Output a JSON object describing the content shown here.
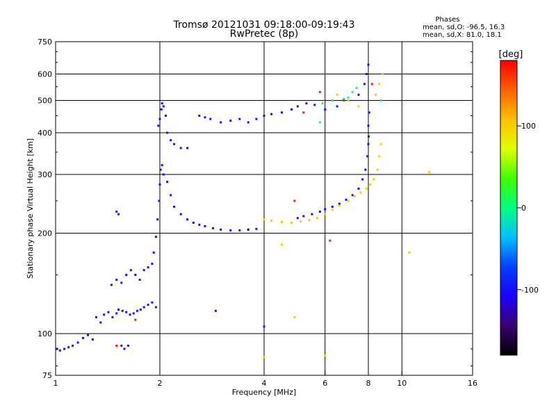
{
  "chart_data": {
    "type": "scatter",
    "title": "Tromsø 20121031 09:18:00-09:19:43",
    "subtitle": "RwPretec (8p)",
    "xlabel": "Frequency [MHz]",
    "ylabel": "Stationary phase Virtual Height [km]",
    "x_scale": "log2",
    "y_scale": "log",
    "xlim": [
      1,
      16
    ],
    "ylim": [
      75,
      750
    ],
    "x_ticks": [
      1,
      2,
      4,
      6,
      8,
      10,
      16
    ],
    "y_ticks": [
      75,
      100,
      200,
      300,
      400,
      500,
      600,
      750
    ],
    "grid": true,
    "stats": {
      "heading": "Phases",
      "line1": "mean, sd,O: -96.5, 16.3",
      "line2": "mean, sd,X:  81.0, 18.1"
    },
    "colorbar": {
      "label": "[deg]",
      "min": -180,
      "max": 180,
      "ticks": [
        100,
        0,
        -100
      ],
      "colors": [
        "#000000",
        "#3a0070",
        "#1a00ff",
        "#0040ff",
        "#00c0ff",
        "#00ff80",
        "#40ff00",
        "#e0ff00",
        "#ffc000",
        "#ff6000",
        "#ff0000"
      ]
    },
    "series": [
      {
        "phase": -100,
        "points": [
          [
            1.01,
            90
          ],
          [
            1.03,
            89
          ],
          [
            1.06,
            90
          ],
          [
            1.09,
            91
          ],
          [
            1.12,
            92
          ],
          [
            1.16,
            94
          ],
          [
            1.2,
            97
          ],
          [
            1.24,
            99
          ],
          [
            1.28,
            96
          ],
          [
            1.31,
            112
          ],
          [
            1.35,
            108
          ],
          [
            1.38,
            114
          ],
          [
            1.42,
            116
          ],
          [
            1.46,
            112
          ],
          [
            1.5,
            115
          ],
          [
            1.52,
            118
          ],
          [
            1.56,
            117
          ],
          [
            1.6,
            116
          ],
          [
            1.64,
            114
          ],
          [
            1.68,
            115
          ],
          [
            1.72,
            117
          ],
          [
            1.76,
            118
          ],
          [
            1.8,
            120
          ],
          [
            1.85,
            122
          ],
          [
            1.9,
            124
          ],
          [
            1.95,
            120
          ],
          [
            1.45,
            140
          ],
          [
            1.5,
            145
          ],
          [
            1.55,
            142
          ],
          [
            1.6,
            150
          ],
          [
            1.65,
            155
          ],
          [
            1.7,
            150
          ],
          [
            1.75,
            145
          ],
          [
            1.8,
            155
          ],
          [
            1.85,
            158
          ],
          [
            1.9,
            162
          ],
          [
            1.5,
            232
          ],
          [
            1.52,
            228
          ],
          [
            1.55,
            92
          ],
          [
            1.58,
            90
          ],
          [
            1.62,
            92
          ],
          [
            1.92,
            175
          ],
          [
            1.95,
            195
          ],
          [
            1.97,
            220
          ],
          [
            1.99,
            250
          ],
          [
            2.0,
            280
          ],
          [
            2.01,
            310
          ],
          [
            2.03,
            320
          ],
          [
            2.05,
            300
          ],
          [
            2.1,
            285
          ],
          [
            2.15,
            260
          ],
          [
            2.2,
            240
          ],
          [
            2.3,
            228
          ],
          [
            2.4,
            220
          ],
          [
            2.5,
            215
          ],
          [
            2.6,
            212
          ],
          [
            2.7,
            210
          ],
          [
            2.85,
            207
          ],
          [
            3.0,
            205
          ],
          [
            3.2,
            204
          ],
          [
            3.4,
            204
          ],
          [
            3.6,
            205
          ],
          [
            3.8,
            206
          ],
          [
            1.98,
            420
          ],
          [
            2.0,
            440
          ],
          [
            2.02,
            470
          ],
          [
            2.03,
            490
          ],
          [
            2.05,
            480
          ],
          [
            2.08,
            450
          ],
          [
            2.1,
            400
          ],
          [
            2.15,
            380
          ],
          [
            2.2,
            370
          ],
          [
            2.3,
            360
          ],
          [
            2.4,
            360
          ],
          [
            2.6,
            450
          ],
          [
            2.7,
            445
          ],
          [
            2.8,
            440
          ],
          [
            3.0,
            430
          ],
          [
            3.2,
            435
          ],
          [
            3.4,
            440
          ],
          [
            3.6,
            430
          ],
          [
            3.8,
            440
          ],
          [
            4.0,
            450
          ],
          [
            4.2,
            455
          ],
          [
            4.5,
            460
          ],
          [
            4.8,
            470
          ],
          [
            5.0,
            480
          ],
          [
            5.3,
            490
          ],
          [
            5.6,
            485
          ],
          [
            6.0,
            470
          ],
          [
            6.5,
            480
          ],
          [
            7.0,
            500
          ],
          [
            7.5,
            520
          ],
          [
            7.8,
            560
          ],
          [
            7.9,
            600
          ],
          [
            8.0,
            640
          ],
          [
            5.0,
            222
          ],
          [
            5.2,
            225
          ],
          [
            5.5,
            228
          ],
          [
            5.8,
            232
          ],
          [
            6.0,
            236
          ],
          [
            6.3,
            240
          ],
          [
            6.6,
            245
          ],
          [
            6.9,
            252
          ],
          [
            7.2,
            260
          ],
          [
            7.5,
            272
          ],
          [
            7.7,
            290
          ],
          [
            7.85,
            310
          ],
          [
            7.95,
            340
          ],
          [
            8.0,
            370
          ],
          [
            8.02,
            390
          ],
          [
            8.0,
            420
          ],
          [
            8.05,
            460
          ],
          [
            2.9,
            117
          ],
          [
            4.0,
            105
          ],
          [
            3.6,
            205
          ]
        ]
      },
      {
        "phase": 100,
        "points": [
          [
            4.0,
            220
          ],
          [
            4.2,
            218
          ],
          [
            4.5,
            216
          ],
          [
            4.8,
            215
          ],
          [
            5.1,
            217
          ],
          [
            5.4,
            219
          ],
          [
            5.7,
            222
          ],
          [
            6.0,
            228
          ],
          [
            6.3,
            235
          ],
          [
            6.6,
            242
          ],
          [
            7.0,
            250
          ],
          [
            7.3,
            258
          ],
          [
            7.6,
            265
          ],
          [
            7.9,
            272
          ],
          [
            8.1,
            280
          ],
          [
            8.3,
            290
          ],
          [
            8.5,
            310
          ],
          [
            8.6,
            340
          ],
          [
            8.7,
            370
          ],
          [
            8.4,
            520
          ],
          [
            8.6,
            560
          ],
          [
            8.8,
            600
          ],
          [
            6.5,
            520
          ],
          [
            7.0,
            500
          ],
          [
            7.5,
            480
          ],
          [
            4.0,
            85
          ],
          [
            4.5,
            185
          ],
          [
            4.9,
            112
          ],
          [
            6.0,
            86
          ],
          [
            10.5,
            175
          ],
          [
            12.0,
            305
          ]
        ]
      },
      {
        "phase": 0,
        "points": [
          [
            7.2,
            530
          ],
          [
            7.4,
            545
          ],
          [
            7.0,
            510
          ],
          [
            6.8,
            505
          ],
          [
            6.3,
            500
          ],
          [
            5.9,
            490
          ],
          [
            8.7,
            500
          ],
          [
            5.8,
            430
          ]
        ]
      },
      {
        "phase": 170,
        "points": [
          [
            5.2,
            460
          ],
          [
            6.8,
            500
          ],
          [
            8.2,
            560
          ],
          [
            5.8,
            530
          ],
          [
            4.9,
            250
          ],
          [
            6.2,
            190
          ],
          [
            1.7,
            110
          ],
          [
            1.5,
            92
          ]
        ]
      }
    ]
  }
}
